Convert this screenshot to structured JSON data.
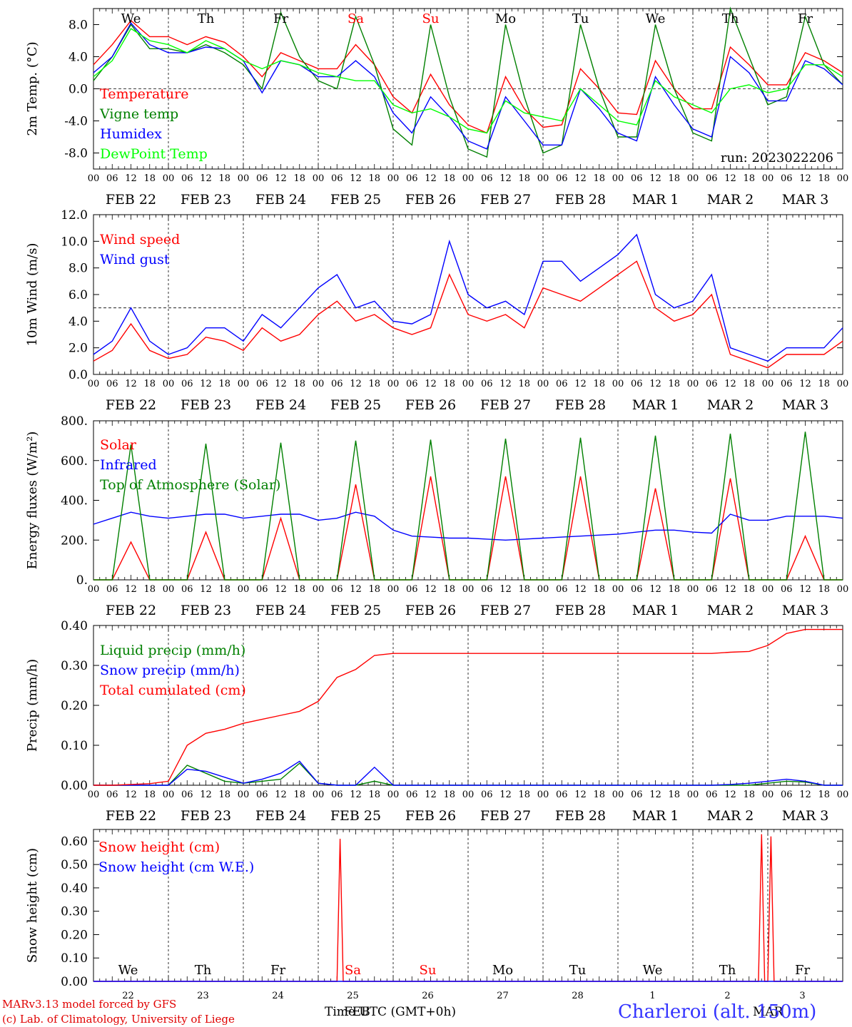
{
  "days": {
    "dates": [
      "FEB 22",
      "FEB 23",
      "FEB 24",
      "FEB 25",
      "FEB 26",
      "FEB 27",
      "FEB 28",
      "MAR  1",
      "MAR  2",
      "MAR  3"
    ],
    "weekdays": [
      "We",
      "Th",
      "Fr",
      "Sa",
      "Su",
      "Mo",
      "Tu",
      "We",
      "Th",
      "Fr"
    ],
    "day_numbers": [
      "22",
      "23",
      "24",
      "25",
      "26",
      "27",
      "28",
      "1",
      "2",
      "3"
    ],
    "hour_ticks": [
      "00",
      "06",
      "12",
      "18"
    ],
    "end_tick": "00",
    "weekday_colors": [
      "#000000",
      "#000000",
      "#000000",
      "#ff0000",
      "#ff0000",
      "#000000",
      "#000000",
      "#000000",
      "#000000",
      "#000000"
    ]
  },
  "run_label": "run: 2023022206",
  "footer": {
    "credit1": "MARv3.13 model forced by GFS",
    "credit2": "(c) Lab. of Climatology, University of Liege",
    "xlabel": "Time UTC (GMT+0h)",
    "month_a": "FEB",
    "month_b": "MAR",
    "station": "Charleroi (alt. 150m)"
  },
  "chart_data": [
    {
      "type": "line",
      "ylabel": "2m Temp. (°C)",
      "ylim": [
        -10,
        10
      ],
      "yticks": [
        "-8.0",
        "-4.0",
        "0.0",
        "4.0",
        "8.0"
      ],
      "ytick_values": [
        -8,
        -4,
        0,
        4,
        8
      ],
      "ref_line": 0,
      "x_hours": [
        0,
        6,
        12,
        18,
        24,
        30,
        36,
        42,
        48,
        54,
        60,
        66,
        72,
        78,
        84,
        90,
        96,
        102,
        108,
        114,
        120,
        126,
        132,
        138,
        144,
        150,
        156,
        162,
        168,
        174,
        180,
        186,
        192,
        198,
        204,
        210,
        216,
        222,
        228,
        234,
        240
      ],
      "series": [
        {
          "name": "Temperature",
          "color": "#ff0000",
          "values": [
            3,
            5.5,
            8.5,
            6.5,
            6.5,
            5.5,
            6.5,
            5.8,
            4,
            1.5,
            4.5,
            3.5,
            2.5,
            2.5,
            5.5,
            3,
            -1,
            -3,
            1.8,
            -2,
            -4.5,
            -5.5,
            1.5,
            -2.5,
            -4.8,
            -4.5,
            2.5,
            0,
            -3,
            -3.2,
            3.5,
            0,
            -2.5,
            -2.5,
            5.2,
            3,
            0.5,
            0.5,
            4.5,
            3.5,
            2
          ]
        },
        {
          "name": "Vigne temp",
          "color": "#008000",
          "values": [
            1,
            4,
            8,
            5,
            5,
            4.5,
            5.5,
            4.5,
            3,
            0,
            9.5,
            4,
            1,
            0,
            9,
            3,
            -5,
            -7,
            8,
            -1,
            -7.5,
            -8.5,
            8,
            -1,
            -8,
            -7,
            8,
            0,
            -6,
            -6,
            8,
            0,
            -5.5,
            -6.5,
            10,
            4,
            -2,
            -1,
            9,
            3,
            0.5
          ]
        },
        {
          "name": "Humidex",
          "color": "#0000ff",
          "values": [
            2,
            4,
            8.2,
            5.5,
            4.5,
            4.5,
            5.2,
            5,
            3.5,
            -0.5,
            3.5,
            3,
            1.5,
            1.5,
            3.5,
            1.5,
            -3,
            -5.5,
            -1,
            -3.5,
            -6.5,
            -7.5,
            -1,
            -4,
            -7,
            -7,
            0,
            -2.5,
            -5.5,
            -6.5,
            1.5,
            -2,
            -5,
            -6,
            4,
            2,
            -1.5,
            -1.5,
            3.5,
            2.5,
            0.5
          ]
        },
        {
          "name": "DewPoint Temp",
          "color": "#00ff00",
          "values": [
            1.5,
            3.5,
            7.5,
            6,
            5.5,
            4.5,
            6,
            5,
            3.5,
            2.5,
            3.5,
            3,
            2,
            1.5,
            1,
            1,
            -2,
            -3,
            -2.5,
            -3.5,
            -5,
            -5.5,
            -1.5,
            -3,
            -3.5,
            -4,
            0,
            -2,
            -4,
            -4.5,
            1,
            -1,
            -2,
            -3,
            0,
            0.5,
            -0.5,
            0,
            3,
            3,
            1.5
          ]
        }
      ]
    },
    {
      "type": "line",
      "ylabel": "10m Wind (m/s)",
      "ylim": [
        0,
        12
      ],
      "yticks": [
        "0.0",
        "2.0",
        "4.0",
        "6.0",
        "8.0",
        "10.0",
        "12.0"
      ],
      "ytick_values": [
        0,
        2,
        4,
        6,
        8,
        10,
        12
      ],
      "ref_line": 5,
      "x_hours": [
        0,
        6,
        12,
        18,
        24,
        30,
        36,
        42,
        48,
        54,
        60,
        66,
        72,
        78,
        84,
        90,
        96,
        102,
        108,
        114,
        120,
        126,
        132,
        138,
        144,
        150,
        156,
        162,
        168,
        174,
        180,
        186,
        192,
        198,
        204,
        210,
        216,
        222,
        228,
        234,
        240
      ],
      "series": [
        {
          "name": "Wind speed",
          "color": "#ff0000",
          "values": [
            1,
            1.8,
            3.8,
            1.8,
            1.2,
            1.5,
            2.8,
            2.5,
            1.8,
            3.5,
            2.5,
            3,
            4.5,
            5.5,
            4,
            4.5,
            3.5,
            3,
            3.5,
            7.5,
            4.5,
            4,
            4.5,
            3.5,
            6.5,
            6,
            5.5,
            6.5,
            7.5,
            8.5,
            5,
            4,
            4.5,
            6,
            1.5,
            1,
            0.5,
            1.5,
            1.5,
            1.5,
            2.5
          ]
        },
        {
          "name": "Wind gust",
          "color": "#0000ff",
          "values": [
            1.5,
            2.5,
            5,
            2.5,
            1.5,
            2,
            3.5,
            3.5,
            2.5,
            4.5,
            3.5,
            5,
            6.5,
            7.5,
            5,
            5.5,
            4,
            3.8,
            4.5,
            10,
            6,
            5,
            5.5,
            4.5,
            8.5,
            8.5,
            7,
            8,
            9,
            10.5,
            6,
            5,
            5.5,
            7.5,
            2,
            1.5,
            1,
            2,
            2,
            2,
            3.5
          ]
        }
      ]
    },
    {
      "type": "line",
      "ylabel": "Energy fluxes (W/m²)",
      "ylim": [
        0,
        800
      ],
      "yticks": [
        "0.",
        "200.",
        "400.",
        "600.",
        "800."
      ],
      "ytick_values": [
        0,
        200,
        400,
        600,
        800
      ],
      "ref_line": null,
      "x_hours": [
        0,
        6,
        12,
        18,
        24,
        30,
        36,
        42,
        48,
        54,
        60,
        66,
        72,
        78,
        84,
        90,
        96,
        102,
        108,
        114,
        120,
        126,
        132,
        138,
        144,
        150,
        156,
        162,
        168,
        174,
        180,
        186,
        192,
        198,
        204,
        210,
        216,
        222,
        228,
        234,
        240
      ],
      "series": [
        {
          "name": "Solar",
          "color": "#ff0000",
          "values": [
            0,
            0,
            190,
            0,
            0,
            0,
            240,
            0,
            0,
            0,
            310,
            0,
            0,
            0,
            480,
            0,
            0,
            0,
            520,
            0,
            0,
            0,
            520,
            0,
            0,
            0,
            520,
            0,
            0,
            0,
            460,
            0,
            0,
            0,
            510,
            0,
            0,
            0,
            220,
            0,
            0
          ]
        },
        {
          "name": "Infrared",
          "color": "#0000ff",
          "values": [
            280,
            310,
            340,
            320,
            310,
            320,
            330,
            330,
            310,
            320,
            330,
            330,
            300,
            310,
            340,
            320,
            250,
            220,
            215,
            210,
            210,
            205,
            200,
            205,
            210,
            215,
            220,
            225,
            230,
            240,
            250,
            250,
            240,
            235,
            330,
            300,
            300,
            320,
            320,
            320,
            310
          ]
        },
        {
          "name": "Top of Atmosphere (Solar)",
          "color": "#008000",
          "values": [
            0,
            0,
            680,
            0,
            0,
            0,
            685,
            0,
            0,
            0,
            690,
            0,
            0,
            0,
            700,
            0,
            0,
            0,
            705,
            0,
            0,
            0,
            710,
            0,
            0,
            0,
            715,
            0,
            0,
            0,
            725,
            0,
            0,
            0,
            735,
            0,
            0,
            0,
            745,
            0,
            0
          ]
        }
      ]
    },
    {
      "type": "line",
      "ylabel": "Precip (mm/h)",
      "ylim": [
        0,
        0.4
      ],
      "yticks": [
        "0.00",
        "0.10",
        "0.20",
        "0.30",
        "0.40"
      ],
      "ytick_values": [
        0,
        0.1,
        0.2,
        0.3,
        0.4
      ],
      "ref_line": null,
      "x_hours": [
        0,
        6,
        12,
        18,
        24,
        30,
        36,
        42,
        48,
        54,
        60,
        66,
        72,
        78,
        84,
        90,
        96,
        102,
        108,
        114,
        120,
        126,
        132,
        138,
        144,
        150,
        156,
        162,
        168,
        174,
        180,
        186,
        192,
        198,
        204,
        210,
        216,
        222,
        228,
        234,
        240
      ],
      "series": [
        {
          "name": "Liquid precip (mm/h)",
          "color": "#008000",
          "values": [
            0,
            0,
            0,
            0,
            0,
            0.05,
            0.03,
            0.01,
            0.005,
            0.01,
            0.015,
            0.055,
            0.005,
            0,
            0,
            0.01,
            0,
            0,
            0,
            0,
            0,
            0,
            0,
            0,
            0,
            0,
            0,
            0,
            0,
            0,
            0,
            0,
            0,
            0,
            0,
            0,
            0.005,
            0.01,
            0.008,
            0,
            0
          ]
        },
        {
          "name": "Snow precip (mm/h)",
          "color": "#0000ff",
          "values": [
            0,
            0,
            0,
            0,
            0,
            0.04,
            0.035,
            0.02,
            0.005,
            0.015,
            0.03,
            0.06,
            0.005,
            0,
            0,
            0.045,
            0,
            0,
            0,
            0,
            0,
            0,
            0,
            0,
            0,
            0,
            0,
            0,
            0,
            0,
            0,
            0,
            0,
            0,
            0.002,
            0.005,
            0.01,
            0.015,
            0.01,
            0,
            0
          ]
        },
        {
          "name": "Total cumulated (cm)",
          "color": "#ff0000",
          "values": [
            0,
            0,
            0.002,
            0.004,
            0.01,
            0.1,
            0.13,
            0.14,
            0.155,
            0.165,
            0.175,
            0.185,
            0.21,
            0.27,
            0.29,
            0.325,
            0.33,
            0.33,
            0.33,
            0.33,
            0.33,
            0.33,
            0.33,
            0.33,
            0.33,
            0.33,
            0.33,
            0.33,
            0.33,
            0.33,
            0.33,
            0.33,
            0.33,
            0.33,
            0.333,
            0.335,
            0.35,
            0.38,
            0.39,
            0.39,
            0.39
          ]
        }
      ]
    },
    {
      "type": "line",
      "ylabel": "Snow height (cm)",
      "ylim": [
        0,
        0.65
      ],
      "yticks": [
        "0.00",
        "0.10",
        "0.20",
        "0.30",
        "0.40",
        "0.50",
        "0.60"
      ],
      "ytick_values": [
        0,
        0.1,
        0.2,
        0.3,
        0.4,
        0.5,
        0.6
      ],
      "ref_line": null,
      "x_hours": [
        0,
        6,
        12,
        18,
        24,
        30,
        36,
        42,
        48,
        54,
        60,
        66,
        72,
        78,
        79,
        80,
        84,
        90,
        96,
        102,
        108,
        114,
        120,
        126,
        132,
        138,
        144,
        150,
        156,
        162,
        168,
        174,
        180,
        186,
        192,
        198,
        204,
        210,
        213,
        214,
        215,
        216,
        217,
        218,
        219,
        222,
        228,
        234,
        240
      ],
      "series": [
        {
          "name": "Snow height (cm)",
          "color": "#ff0000",
          "values": [
            0,
            0,
            0,
            0,
            0,
            0,
            0,
            0,
            0,
            0,
            0,
            0,
            0,
            0,
            0.61,
            0,
            0,
            0,
            0,
            0,
            0,
            0,
            0,
            0,
            0,
            0,
            0,
            0,
            0,
            0,
            0,
            0,
            0,
            0,
            0,
            0,
            0,
            0,
            0,
            0.63,
            0,
            0,
            0.62,
            0,
            0,
            0,
            0,
            0,
            0
          ]
        },
        {
          "name": "Snow height (cm W.E.)",
          "color": "#0000ff",
          "values": [
            0,
            0,
            0,
            0,
            0,
            0,
            0,
            0,
            0,
            0,
            0,
            0,
            0,
            0,
            0,
            0,
            0,
            0,
            0,
            0,
            0,
            0,
            0,
            0,
            0,
            0,
            0,
            0,
            0,
            0,
            0,
            0,
            0,
            0,
            0,
            0,
            0,
            0,
            0,
            0,
            0,
            0,
            0,
            0,
            0,
            0,
            0,
            0,
            0
          ]
        }
      ]
    }
  ]
}
